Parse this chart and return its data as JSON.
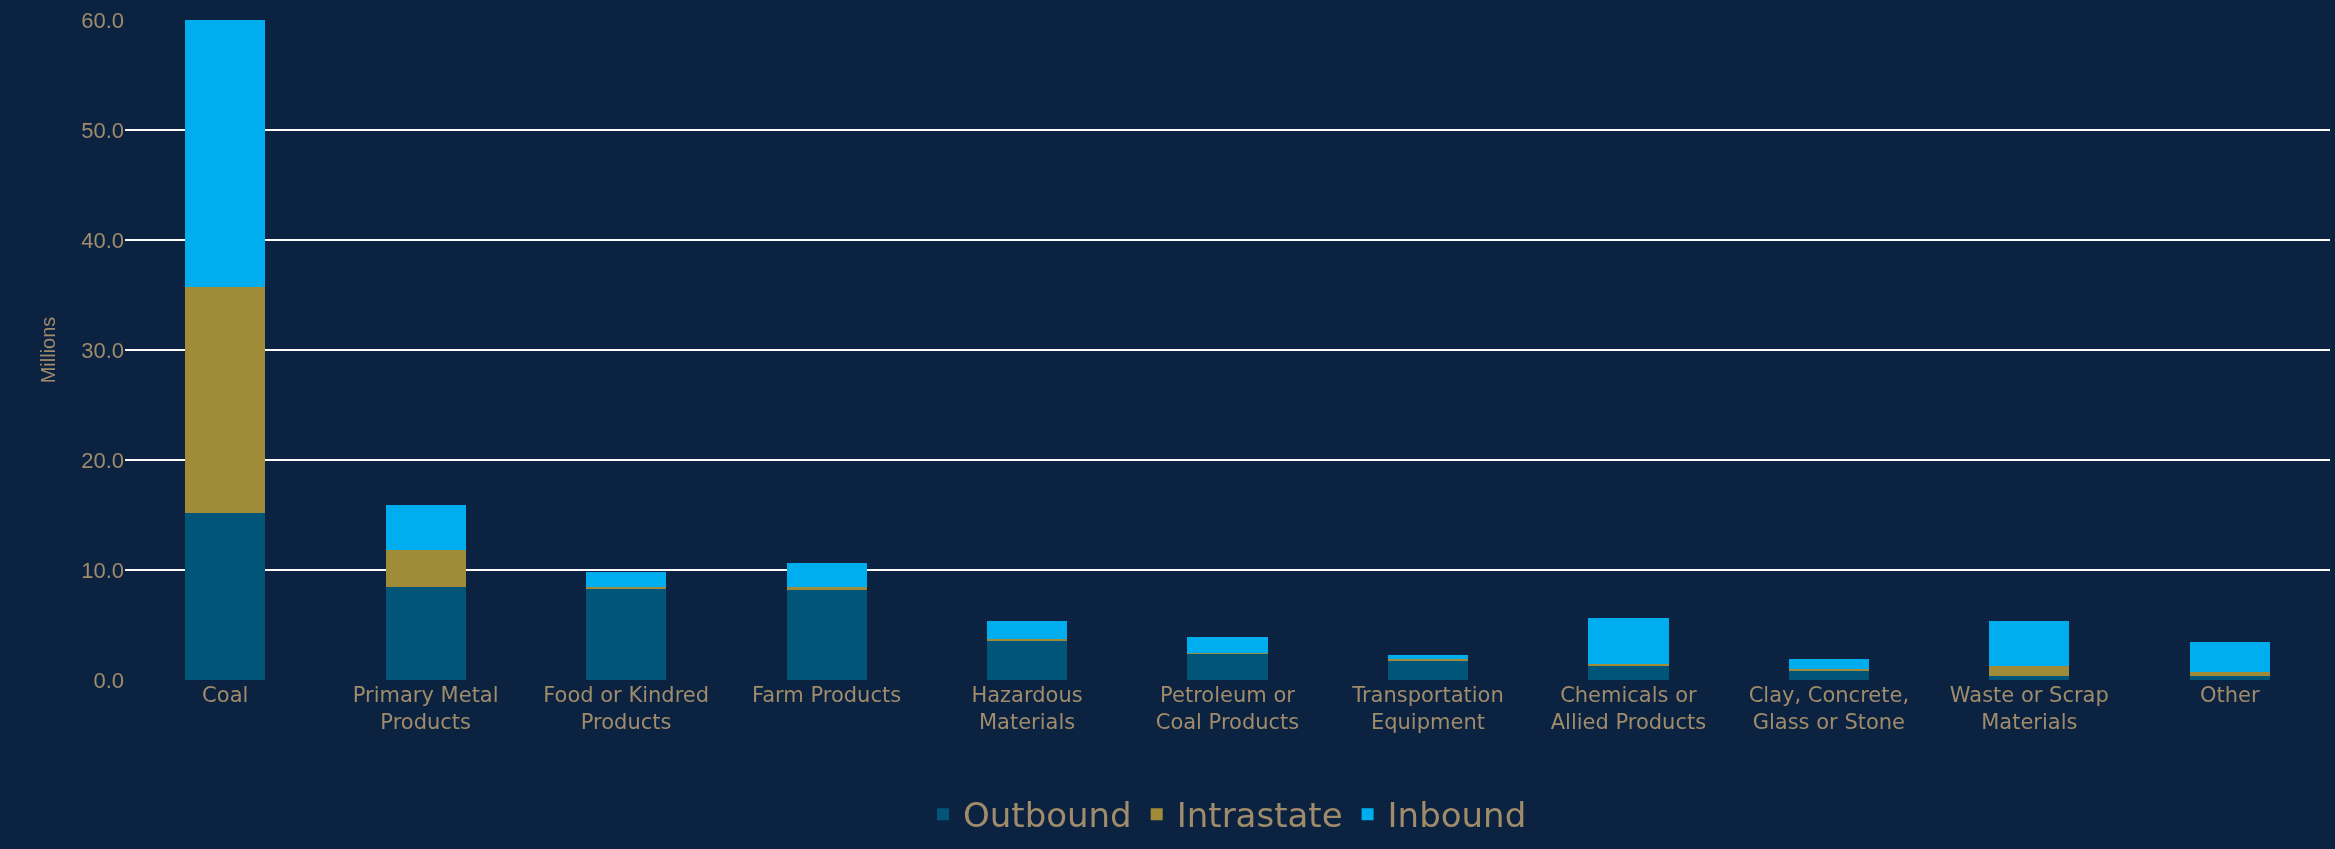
{
  "chart_data": {
    "type": "bar",
    "stacked": true,
    "ylabel": "Millions",
    "categories": [
      "Coal",
      "Primary Metal Products",
      "Food or Kindred Products",
      "Farm Products",
      "Hazardous Materials",
      "Petroleum or Coal Products",
      "Transportation Equipment",
      "Chemicals or Allied Products",
      "Clay, Concrete, Glass or Stone",
      "Waste or Scrap Materials",
      "Other"
    ],
    "series": [
      {
        "name": "Outbound",
        "color": "#005578",
        "values": [
          15.2,
          8.5,
          8.25,
          8.2,
          3.55,
          2.4,
          1.8,
          1.25,
          0.85,
          0.4,
          0.35
        ]
      },
      {
        "name": "Intrastate",
        "color": "#a08c38",
        "values": [
          20.5,
          3.3,
          0.25,
          0.25,
          0.15,
          0.1,
          0.15,
          0.25,
          0.15,
          0.9,
          0.35
        ]
      },
      {
        "name": "Inbound",
        "color": "#00aeef",
        "values": [
          24.3,
          4.1,
          1.3,
          2.15,
          1.7,
          1.4,
          0.35,
          4.15,
          0.95,
          4.1,
          2.75
        ]
      }
    ],
    "ylim": [
      0,
      60
    ],
    "yticks": [
      {
        "value": 0,
        "label": "0.0"
      },
      {
        "value": 10,
        "label": "10.0"
      },
      {
        "value": 20,
        "label": "20.0"
      },
      {
        "value": 30,
        "label": "30.0"
      },
      {
        "value": 40,
        "label": "40.0"
      },
      {
        "value": 50,
        "label": "50.0"
      },
      {
        "value": 60,
        "label": "60.0"
      }
    ],
    "grid": "y",
    "legend": "bottom"
  }
}
